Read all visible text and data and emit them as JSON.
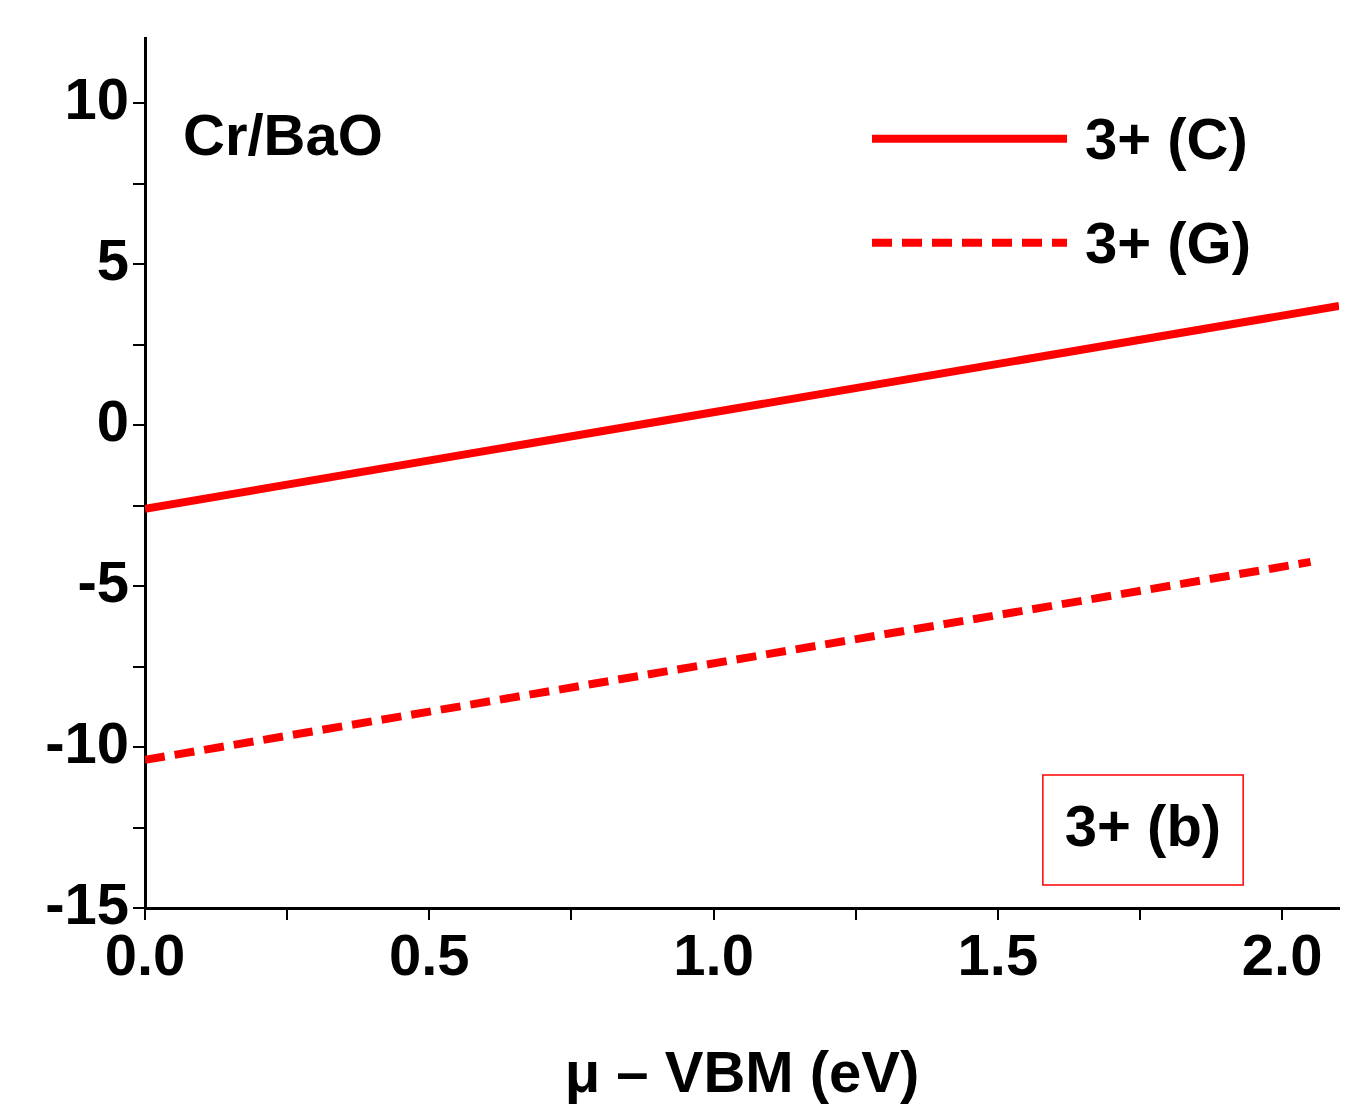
{
  "chart_data": {
    "type": "line",
    "xlabel": "μ – VBM (eV)",
    "xlim": [
      0,
      2.1
    ],
    "xticks": [
      {
        "value": 0,
        "label": "0.0"
      },
      {
        "value": 0.25,
        "label": null
      },
      {
        "value": 0.5,
        "label": "0.5"
      },
      {
        "value": 0.75,
        "label": null
      },
      {
        "value": 1,
        "label": "1.0"
      },
      {
        "value": 1.25,
        "label": null
      },
      {
        "value": 1.5,
        "label": "1.5"
      },
      {
        "value": 1.75,
        "label": null
      },
      {
        "value": 2,
        "label": "2.0"
      }
    ],
    "ylim": [
      -15,
      12
    ],
    "yticks": [
      -15,
      {
        "value": -12.5,
        "label": null
      },
      -10,
      {
        "value": -7.5,
        "label": null
      },
      -5,
      {
        "value": -2.5,
        "label": null
      },
      0,
      {
        "value": 2.5,
        "label": null
      },
      5,
      {
        "value": 7.5,
        "label": null
      },
      10
    ],
    "series": [
      {
        "name": "3+ (C)",
        "color": "#ff0000",
        "line_style": "solid",
        "x": [
          0,
          2.1
        ],
        "values": [
          -2.6,
          3.7
        ]
      },
      {
        "name": "3+ (G)",
        "color": "#ff0000",
        "line_style": "dashed",
        "x": [
          0,
          2.05
        ],
        "values": [
          -10.4,
          -4.25
        ]
      }
    ],
    "annotations": [
      "Cr/BaO",
      "3+ (b)"
    ],
    "legend": "top right",
    "grid": false
  }
}
